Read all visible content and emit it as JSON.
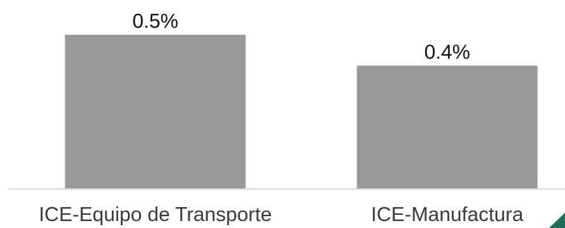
{
  "chart_data": {
    "type": "bar",
    "categories": [
      "ICE-Equipo de Transporte",
      "ICE-Manufactura"
    ],
    "values": [
      0.5,
      0.4
    ],
    "data_labels": [
      "0.5%",
      "0.4%"
    ],
    "title": "",
    "xlabel": "",
    "ylabel": "",
    "ylim": [
      0,
      0.5
    ],
    "grid": false,
    "legend": "none",
    "colors": {
      "bar": "#999999",
      "axis": "#d9d9d9",
      "label": "#3a3a3a",
      "data_label": "#111111",
      "corner_accent": "#1f6f5a"
    }
  }
}
